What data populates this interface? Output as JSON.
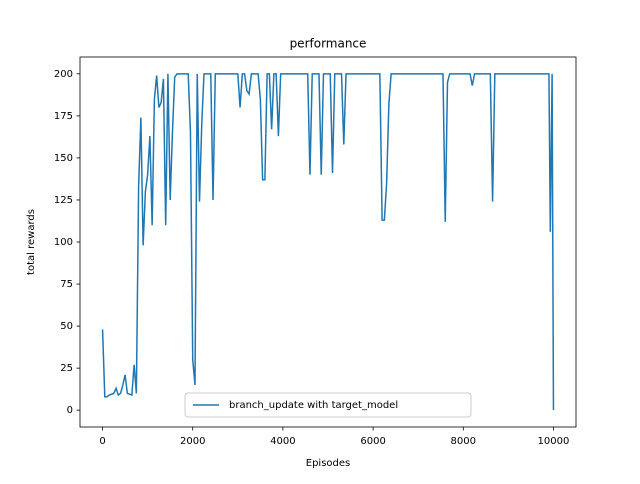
{
  "chart_data": {
    "type": "line",
    "title": "performance",
    "x_label": "Episodes",
    "y_label": "total rewards",
    "x": [
      0,
      50,
      100,
      150,
      250,
      300,
      350,
      400,
      450,
      500,
      550,
      650,
      700,
      750,
      800,
      850,
      900,
      950,
      1000,
      1050,
      1100,
      1150,
      1200,
      1250,
      1300,
      1350,
      1400,
      1450,
      1500,
      1550,
      1600,
      1650,
      1900,
      1950,
      2000,
      2050,
      2100,
      2150,
      2200,
      2250,
      2400,
      2450,
      2500,
      3000,
      3050,
      3100,
      3150,
      3200,
      3250,
      3300,
      3450,
      3500,
      3550,
      3600,
      3650,
      3700,
      3750,
      3800,
      3850,
      3900,
      3950,
      4550,
      4600,
      4650,
      4800,
      4850,
      4900,
      5050,
      5100,
      5150,
      5300,
      5350,
      5400,
      6150,
      6200,
      6250,
      6300,
      6350,
      6400,
      7550,
      7600,
      7650,
      7700,
      8150,
      8200,
      8250,
      8600,
      8650,
      8700,
      9900,
      9930,
      9970,
      10000
    ],
    "series": [
      {
        "name": "branch_update with target_model",
        "color": "#1f77b4",
        "values": [
          48,
          8,
          8,
          9,
          10,
          13,
          9,
          10,
          15,
          21,
          10,
          9,
          27,
          10,
          133,
          174,
          98,
          130,
          140,
          163,
          110,
          185,
          199,
          180,
          183,
          197,
          110,
          200,
          125,
          165,
          198,
          200,
          200,
          165,
          30,
          15,
          200,
          124,
          170,
          200,
          200,
          125,
          200,
          200,
          180,
          200,
          200,
          190,
          188,
          200,
          200,
          185,
          137,
          137,
          200,
          200,
          167,
          200,
          200,
          163,
          200,
          200,
          140,
          200,
          200,
          140,
          200,
          200,
          141,
          200,
          200,
          158,
          200,
          200,
          113,
          113,
          135,
          182,
          200,
          200,
          112,
          195,
          200,
          200,
          193,
          200,
          200,
          124,
          200,
          200,
          106,
          200,
          0
        ]
      }
    ],
    "xlim": [
      -500,
      10500
    ],
    "ylim": [
      -10,
      210
    ],
    "xticks": [
      0,
      2000,
      4000,
      6000,
      8000,
      10000
    ],
    "yticks": [
      0,
      25,
      50,
      75,
      100,
      125,
      150,
      175,
      200
    ],
    "legend": "lower center"
  }
}
